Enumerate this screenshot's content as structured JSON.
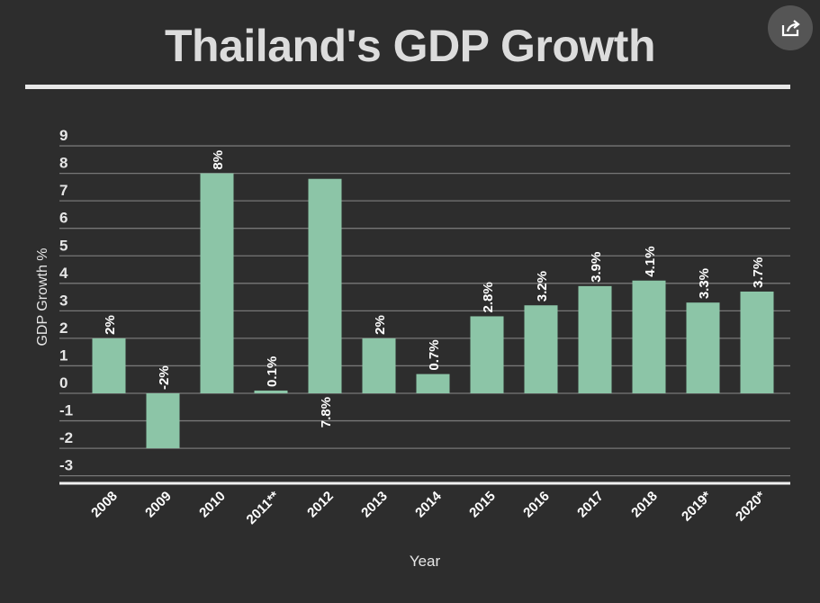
{
  "share_button": {
    "icon": "share-icon"
  },
  "chart_data": {
    "type": "bar",
    "title": "Thailand's GDP Growth",
    "xlabel": "Year",
    "ylabel": "GDP Growth %",
    "ylim": [
      -3.3,
      9
    ],
    "yticks": [
      9,
      8,
      7,
      6,
      5,
      4,
      3,
      2,
      1,
      0,
      -1,
      -2,
      -3
    ],
    "grid": true,
    "categories": [
      "2008",
      "2009",
      "2010",
      "2011**",
      "2012",
      "2013",
      "2014",
      "2015",
      "2016",
      "2017",
      "2018",
      "2019*",
      "2020*"
    ],
    "values": [
      2,
      -2,
      8,
      0.1,
      7.8,
      2,
      0.7,
      2.8,
      3.2,
      3.9,
      4.1,
      3.3,
      3.7
    ],
    "data_labels": [
      "2%",
      "-2%",
      "8%",
      "0.1%",
      "7.8%",
      "2%",
      "0.7%",
      "2.8%",
      "3.2%",
      "3.9%",
      "4.1%",
      "3.3%",
      "3.7%"
    ],
    "colors": {
      "bar": "#8cc5a7",
      "background": "#2d2d2d",
      "grid": "#777777",
      "text": "#e6e6e6"
    }
  }
}
